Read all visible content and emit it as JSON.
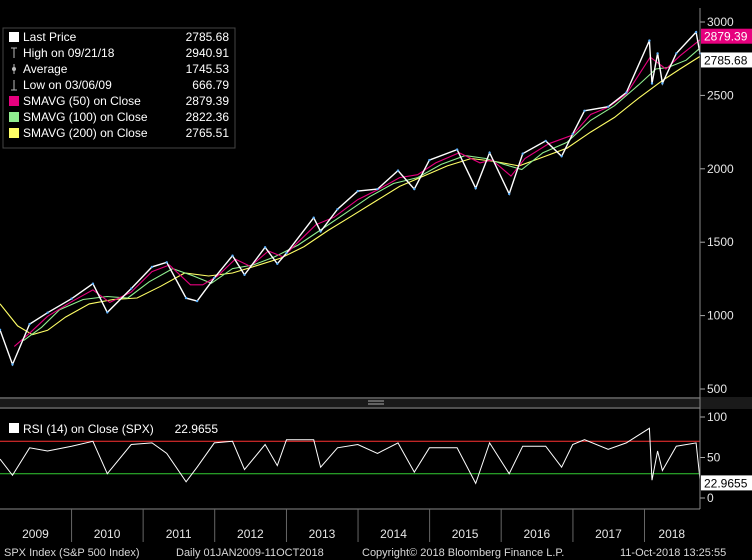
{
  "chart_data": [
    {
      "type": "line",
      "ylim": [
        450,
        3100
      ],
      "xlim": [
        "2009-01-01",
        "2018-10-11"
      ],
      "yticks": [
        500,
        1000,
        1500,
        2000,
        2500,
        3000
      ],
      "grid": false,
      "legend_placement": "top-left",
      "legend": [
        {
          "name": "Last Price",
          "value": "2785.68",
          "color": "#ffffff",
          "marker": "box"
        },
        {
          "name": "High on 09/21/18",
          "value": "2940.91",
          "color": "#bbbbbb",
          "marker": "high"
        },
        {
          "name": "Average",
          "value": "1745.53",
          "color": "#bbbbbb",
          "marker": "avg"
        },
        {
          "name": "Low on 03/06/09",
          "value": "666.79",
          "color": "#bbbbbb",
          "marker": "low"
        },
        {
          "name": "SMAVG (50)  on Close",
          "value": "2879.39",
          "color": "#e6007e",
          "marker": "box"
        },
        {
          "name": "SMAVG (100)  on Close",
          "value": "2822.36",
          "color": "#90ee90",
          "marker": "box"
        },
        {
          "name": "SMAVG (200)  on Close",
          "value": "2765.51",
          "color": "#ffff66",
          "marker": "box"
        }
      ],
      "series": [
        {
          "name": "Last Price",
          "color": "#ffffff",
          "x": [
            "2009-01-01",
            "2009-03-06",
            "2009-06-01",
            "2009-09-01",
            "2010-01-01",
            "2010-04-20",
            "2010-07-02",
            "2010-11-01",
            "2011-02-15",
            "2011-05-01",
            "2011-08-08",
            "2011-10-03",
            "2011-12-30",
            "2012-04-01",
            "2012-06-01",
            "2012-09-14",
            "2012-11-15",
            "2013-01-01",
            "2013-05-20",
            "2013-06-24",
            "2013-09-18",
            "2013-12-31",
            "2014-04-10",
            "2014-07-24",
            "2014-10-15",
            "2014-12-31",
            "2015-05-21",
            "2015-08-24",
            "2015-11-03",
            "2016-02-11",
            "2016-04-20",
            "2016-08-15",
            "2016-11-04",
            "2016-12-31",
            "2017-03-01",
            "2017-06-30",
            "2017-09-30",
            "2018-01-26",
            "2018-02-08",
            "2018-03-09",
            "2018-04-02",
            "2018-06-12",
            "2018-09-21",
            "2018-10-11"
          ],
          "values": [
            903,
            667,
            942,
            1020,
            1115,
            1217,
            1022,
            1184,
            1332,
            1363,
            1119,
            1099,
            1257,
            1408,
            1278,
            1465,
            1353,
            1426,
            1667,
            1573,
            1725,
            1848,
            1862,
            1988,
            1862,
            2059,
            2131,
            1868,
            2110,
            1829,
            2103,
            2190,
            2085,
            2238,
            2395,
            2423,
            2519,
            2873,
            2581,
            2786,
            2582,
            2786,
            2931,
            2786
          ]
        },
        {
          "name": "SMAVG (50)",
          "color": "#e6007e",
          "x": [
            "2009-03-15",
            "2009-06-01",
            "2009-09-01",
            "2010-01-01",
            "2010-04-20",
            "2010-07-15",
            "2010-11-01",
            "2011-02-15",
            "2011-05-15",
            "2011-08-30",
            "2011-11-01",
            "2012-01-15",
            "2012-04-15",
            "2012-07-01",
            "2012-10-01",
            "2012-12-15",
            "2013-03-01",
            "2013-06-01",
            "2013-09-01",
            "2013-12-31",
            "2014-04-15",
            "2014-08-01",
            "2014-11-01",
            "2015-02-01",
            "2015-06-01",
            "2015-09-15",
            "2015-11-15",
            "2016-02-20",
            "2016-05-01",
            "2016-08-30",
            "2016-12-31",
            "2017-04-01",
            "2017-07-01",
            "2017-10-01",
            "2018-01-30",
            "2018-03-01",
            "2018-04-20",
            "2018-07-01",
            "2018-10-11"
          ],
          "values": [
            790,
            880,
            995,
            1095,
            1175,
            1090,
            1160,
            1300,
            1345,
            1210,
            1210,
            1270,
            1385,
            1335,
            1440,
            1400,
            1500,
            1620,
            1670,
            1790,
            1860,
            1940,
            1960,
            2040,
            2110,
            2040,
            2060,
            1950,
            2070,
            2170,
            2230,
            2370,
            2420,
            2510,
            2760,
            2730,
            2680,
            2770,
            2879
          ]
        },
        {
          "name": "SMAVG (100)",
          "color": "#90ee90",
          "x": [
            "2009-05-01",
            "2009-08-01",
            "2009-11-01",
            "2010-03-01",
            "2010-07-01",
            "2010-10-15",
            "2011-02-01",
            "2011-06-01",
            "2011-09-15",
            "2011-12-15",
            "2012-04-01",
            "2012-07-15",
            "2012-11-01",
            "2013-03-01",
            "2013-07-01",
            "2013-11-01",
            "2014-03-01",
            "2014-07-01",
            "2014-11-01",
            "2015-03-01",
            "2015-07-01",
            "2015-10-15",
            "2016-01-15",
            "2016-04-15",
            "2016-08-01",
            "2016-12-01",
            "2017-04-01",
            "2017-08-01",
            "2017-12-01",
            "2018-02-28",
            "2018-05-01",
            "2018-08-01",
            "2018-10-11"
          ],
          "values": [
            830,
            920,
            1040,
            1110,
            1130,
            1120,
            1230,
            1320,
            1270,
            1220,
            1320,
            1345,
            1400,
            1480,
            1590,
            1700,
            1810,
            1900,
            1940,
            2030,
            2090,
            2070,
            2030,
            1995,
            2110,
            2180,
            2330,
            2430,
            2570,
            2680,
            2690,
            2740,
            2822
          ]
        },
        {
          "name": "SMAVG (200)",
          "color": "#ffff66",
          "x": [
            "2009-01-01",
            "2009-04-01",
            "2009-06-15",
            "2009-09-01",
            "2009-12-01",
            "2010-04-01",
            "2010-08-01",
            "2010-12-01",
            "2011-04-01",
            "2011-08-01",
            "2011-12-01",
            "2012-04-01",
            "2012-08-01",
            "2012-12-01",
            "2013-04-01",
            "2013-08-01",
            "2013-12-01",
            "2014-04-01",
            "2014-08-01",
            "2014-12-01",
            "2015-04-01",
            "2015-08-01",
            "2015-12-01",
            "2016-04-01",
            "2016-08-01",
            "2016-12-01",
            "2017-04-01",
            "2017-08-01",
            "2017-12-01",
            "2018-04-01",
            "2018-07-01",
            "2018-10-11"
          ],
          "values": [
            1080,
            930,
            870,
            900,
            990,
            1080,
            1110,
            1120,
            1200,
            1290,
            1270,
            1290,
            1340,
            1390,
            1470,
            1580,
            1680,
            1780,
            1880,
            1950,
            2020,
            2070,
            2050,
            2020,
            2080,
            2140,
            2250,
            2350,
            2480,
            2600,
            2680,
            2766
          ]
        }
      ],
      "tags": [
        {
          "value": "2879.39",
          "bg": "#e6007e",
          "fg": "#ffffff",
          "y": 2879.39
        },
        {
          "value": "2785.68",
          "bg": "#ffffff",
          "fg": "#000000",
          "y": 2785.68
        }
      ]
    },
    {
      "type": "line",
      "ylim": [
        0,
        100
      ],
      "yticks": [
        0,
        50,
        100
      ],
      "reference_lines": [
        {
          "value": 70,
          "color": "#ff3333"
        },
        {
          "value": 30,
          "color": "#33cc33"
        }
      ],
      "legend_placement": "top-left",
      "legend": [
        {
          "name": "RSI (14)  on Close (SPX)",
          "value": "22.9655",
          "color": "#ffffff"
        }
      ],
      "series": [
        {
          "name": "RSI (14)",
          "color": "#ffffff",
          "x": [
            "2009-01-01",
            "2009-03-06",
            "2009-06-01",
            "2009-09-01",
            "2010-01-01",
            "2010-04-20",
            "2010-07-02",
            "2010-11-01",
            "2011-02-15",
            "2011-05-01",
            "2011-08-08",
            "2011-10-03",
            "2011-12-30",
            "2012-04-01",
            "2012-06-01",
            "2012-09-14",
            "2012-11-15",
            "2013-01-01",
            "2013-05-20",
            "2013-06-24",
            "2013-09-18",
            "2013-12-31",
            "2014-04-10",
            "2014-07-24",
            "2014-10-15",
            "2014-12-31",
            "2015-05-21",
            "2015-08-24",
            "2015-11-03",
            "2016-02-11",
            "2016-04-20",
            "2016-08-15",
            "2016-11-04",
            "2016-12-31",
            "2017-03-01",
            "2017-06-30",
            "2017-09-30",
            "2018-01-26",
            "2018-02-08",
            "2018-03-09",
            "2018-04-02",
            "2018-06-12",
            "2018-09-21",
            "2018-10-11"
          ],
          "values": [
            48,
            28,
            62,
            58,
            64,
            70,
            30,
            66,
            68,
            55,
            20,
            38,
            68,
            70,
            35,
            66,
            40,
            72,
            72,
            38,
            62,
            66,
            55,
            68,
            32,
            62,
            62,
            18,
            68,
            30,
            64,
            64,
            38,
            66,
            72,
            60,
            68,
            86,
            22,
            58,
            34,
            64,
            68,
            23
          ]
        }
      ],
      "tags": [
        {
          "value": "22.9655",
          "bg": "#ffffff",
          "fg": "#000000",
          "y": 22.9655
        }
      ]
    }
  ],
  "x_axis": {
    "ticks": [
      {
        "label": "2009",
        "date": "2009-07-01"
      },
      {
        "label": "2010",
        "date": "2010-07-01"
      },
      {
        "label": "2011",
        "date": "2011-07-01"
      },
      {
        "label": "2012",
        "date": "2012-07-01"
      },
      {
        "label": "2013",
        "date": "2013-07-01"
      },
      {
        "label": "2014",
        "date": "2014-07-01"
      },
      {
        "label": "2015",
        "date": "2015-07-01"
      },
      {
        "label": "2016",
        "date": "2016-07-01"
      },
      {
        "label": "2017",
        "date": "2017-07-01"
      },
      {
        "label": "2018",
        "date": "2018-05-20"
      }
    ]
  },
  "footer": {
    "security": "SPX Index (S&P 500 Index)",
    "period": "Daily 01JAN2009-11OCT2018",
    "copyright": "Copyright© 2018 Bloomberg Finance L.P.",
    "timestamp": "11-Oct-2018 13:25:55"
  }
}
